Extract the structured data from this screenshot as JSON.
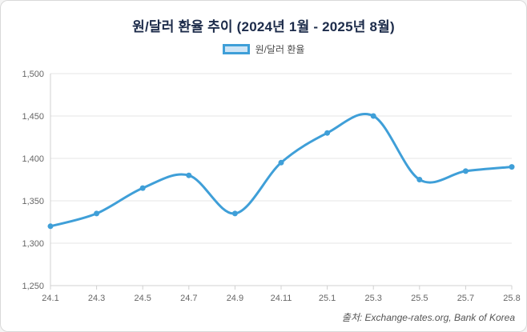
{
  "page": {
    "title": "원/달러 환율 추이 (2024년 1월 - 2025년 8월)",
    "source": "출처: Exchange-rates.org, Bank of Korea"
  },
  "legend": {
    "label": "원/달러 환율"
  },
  "colors": {
    "line": "#3f9fd8",
    "legend_fill": "#cfe5f6",
    "grid": "#e6e6e6",
    "axis": "#d0d0d0",
    "tick_text": "#666666",
    "title_text": "#1c2b4a"
  },
  "chart_data": {
    "type": "line",
    "title": "원/달러 환율 추이 (2024년 1월 - 2025년 8월)",
    "categories": [
      "24.1",
      "24.3",
      "24.5",
      "24.7",
      "24.9",
      "24.11",
      "25.1",
      "25.3",
      "25.5",
      "25.7",
      "25.8"
    ],
    "series": [
      {
        "name": "원/달러 환율",
        "values": [
          1320,
          1335,
          1365,
          1380,
          1335,
          1395,
          1430,
          1450,
          1375,
          1385,
          1390
        ]
      }
    ],
    "xlabel": "",
    "ylabel": "",
    "ylim": [
      1250,
      1500
    ],
    "y_ticks": [
      1250,
      1300,
      1350,
      1400,
      1450,
      1500
    ],
    "y_tick_labels": [
      "1,250",
      "1,300",
      "1,350",
      "1,400",
      "1,450",
      "1,500"
    ],
    "grid": true,
    "smooth": true,
    "legend_position": "top",
    "source": "출처: Exchange-rates.org, Bank of Korea"
  }
}
